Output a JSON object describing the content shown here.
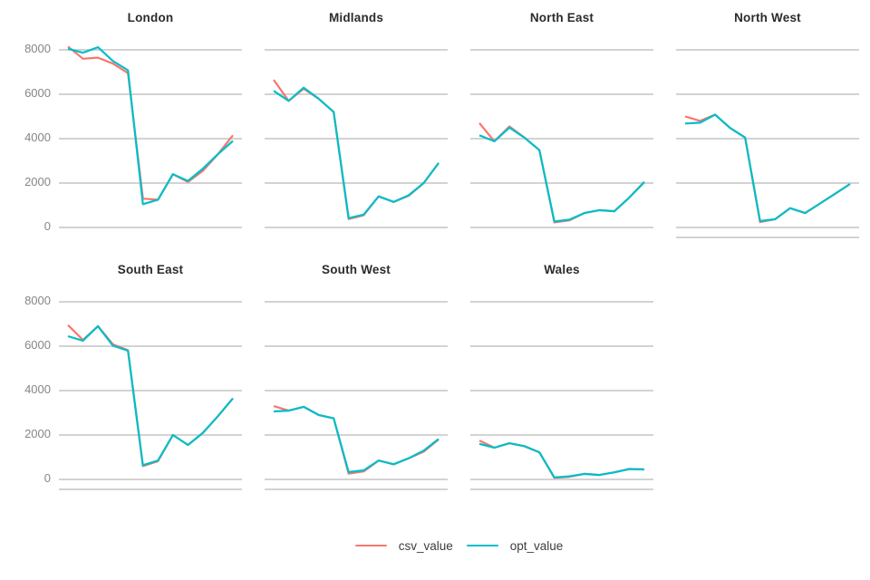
{
  "page": {
    "background": "#ffffff"
  },
  "axis": {
    "y_tick_labels": [
      "8000",
      "6000",
      "4000",
      "2000",
      "0"
    ]
  },
  "style": {
    "grid_color": "#d3d3d3",
    "axis_line_color": "#d3d3d3",
    "tick_label_color": "#868686",
    "title_color": "#2b2b2b"
  },
  "legend": {
    "items": [
      {
        "label": "csv_value",
        "color": "#F8766D"
      },
      {
        "label": "opt_value",
        "color": "#00BEC9"
      }
    ]
  },
  "chart_data": {
    "type": "line",
    "layout": "facet-grid-4-columns",
    "x": [
      1,
      2,
      3,
      4,
      5,
      6,
      7,
      8,
      9,
      10,
      11,
      12
    ],
    "x_tick_labels_visible": false,
    "y_ticks": [
      0,
      2000,
      4000,
      6000,
      8000
    ],
    "ylim": [
      -400,
      8400
    ],
    "grid": "horizontal-only",
    "legend_position": "bottom-center",
    "series_names": [
      "csv_value",
      "opt_value"
    ],
    "series_colors": {
      "csv_value": "#F8766D",
      "opt_value": "#00BEC9"
    },
    "facets": [
      {
        "title": "London",
        "series": [
          {
            "name": "csv_value",
            "values": [
              8150,
              7600,
              7650,
              7380,
              6950,
              1300,
              1250,
              2400,
              2050,
              2550,
              3300,
              4150
            ]
          },
          {
            "name": "opt_value",
            "values": [
              8050,
              7870,
              8120,
              7500,
              7080,
              1050,
              1250,
              2400,
              2100,
              2650,
              3300,
              3900
            ]
          }
        ]
      },
      {
        "title": "Midlands",
        "series": [
          {
            "name": "csv_value",
            "values": [
              6650,
              5700,
              6250,
              5800,
              5200,
              380,
              550,
              1400,
              1150,
              1430,
              2000,
              2900
            ]
          },
          {
            "name": "opt_value",
            "values": [
              6150,
              5700,
              6300,
              5800,
              5200,
              420,
              580,
              1400,
              1150,
              1450,
              2000,
              2900
            ]
          }
        ]
      },
      {
        "title": "North East",
        "series": [
          {
            "name": "csv_value",
            "values": [
              4700,
              3880,
              4550,
              4050,
              3480,
              230,
              320,
              650,
              780,
              730,
              1350,
              2050
            ]
          },
          {
            "name": "opt_value",
            "values": [
              4150,
              3880,
              4500,
              4050,
              3480,
              270,
              350,
              650,
              780,
              730,
              1350,
              2050
            ]
          }
        ]
      },
      {
        "title": "North West",
        "series": [
          {
            "name": "csv_value",
            "values": [
              5000,
              4800,
              5080,
              4480,
              4050,
              240,
              370,
              870,
              650,
              1080,
              1520,
              1960
            ]
          },
          {
            "name": "opt_value",
            "values": [
              4680,
              4720,
              5080,
              4480,
              4050,
              290,
              370,
              870,
              650,
              1080,
              1520,
              1960
            ]
          }
        ]
      },
      {
        "title": "South East",
        "series": [
          {
            "name": "csv_value",
            "values": [
              6950,
              6280,
              6900,
              6080,
              5820,
              600,
              820,
              2000,
              1550,
              2100,
              2850,
              3650
            ]
          },
          {
            "name": "opt_value",
            "values": [
              6450,
              6250,
              6900,
              6020,
              5800,
              640,
              850,
              2000,
              1550,
              2100,
              2850,
              3650
            ]
          }
        ]
      },
      {
        "title": "South West",
        "series": [
          {
            "name": "csv_value",
            "values": [
              3300,
              3100,
              3270,
              2900,
              2750,
              260,
              360,
              850,
              680,
              950,
              1250,
              1800
            ]
          },
          {
            "name": "opt_value",
            "values": [
              3060,
              3100,
              3270,
              2900,
              2750,
              330,
              410,
              850,
              680,
              950,
              1300,
              1820
            ]
          }
        ]
      },
      {
        "title": "Wales",
        "series": [
          {
            "name": "csv_value",
            "values": [
              1750,
              1430,
              1630,
              1500,
              1220,
              70,
              120,
              250,
              200,
              320,
              470,
              450
            ]
          },
          {
            "name": "opt_value",
            "values": [
              1600,
              1430,
              1630,
              1500,
              1220,
              90,
              140,
              250,
              200,
              320,
              470,
              450
            ]
          }
        ]
      }
    ]
  }
}
